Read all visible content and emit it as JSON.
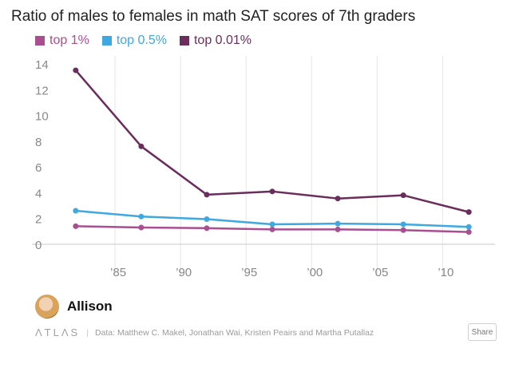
{
  "chart_data": {
    "type": "line",
    "title": "Ratio of males to females in math SAT scores of 7th graders",
    "xlabel": "",
    "ylabel": "",
    "x": [
      1982,
      1987,
      1992,
      1997,
      2002,
      2007,
      2012
    ],
    "x_ticks": [
      1985,
      1990,
      1995,
      2000,
      2005,
      2010
    ],
    "x_tick_labels": [
      "’85",
      "’90",
      "’95",
      "’00",
      "’05",
      "’10"
    ],
    "xlim": [
      1980,
      2014
    ],
    "ylim": [
      0,
      14
    ],
    "y_ticks": [
      0,
      2,
      4,
      6,
      8,
      10,
      12,
      14
    ],
    "y_tick_labels": [
      "0",
      "2",
      "4",
      "6",
      "8",
      "10",
      "12",
      "14"
    ],
    "grid": "vertical",
    "legend_position": "top-left",
    "series": [
      {
        "name": "top 1%",
        "color": "#a94e91",
        "values": [
          1.4,
          1.3,
          1.25,
          1.15,
          1.15,
          1.1,
          0.95
        ]
      },
      {
        "name": "top 0.5%",
        "color": "#3ea8e0",
        "values": [
          2.6,
          2.15,
          1.95,
          1.55,
          1.6,
          1.55,
          1.35
        ]
      },
      {
        "name": "top 0.01%",
        "color": "#6b2d5c",
        "values": [
          13.5,
          7.6,
          3.85,
          4.1,
          3.55,
          3.8,
          2.5
        ]
      }
    ]
  },
  "author": {
    "name": "Allison",
    "avatar": "author-photo"
  },
  "footer": {
    "brand": "ΛTLΛS",
    "separator": "|",
    "source": "Data: Matthew C. Makel, Jonathan Wai, Kristen Peairs and Martha Putallaz",
    "share_label": "Share"
  }
}
